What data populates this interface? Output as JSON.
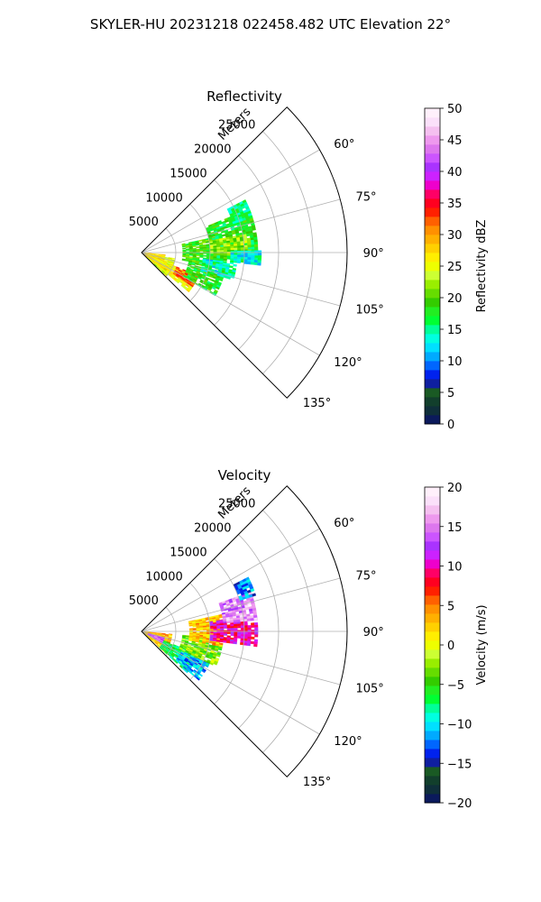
{
  "figure": {
    "suptitle": "SKYLER-HU  20231218  022458.482 UTC Elevation 22°"
  },
  "chart_data": [
    {
      "type": "heatmap",
      "projection": "polar-sector",
      "title": "Reflectivity",
      "radial_label": "Meters",
      "radial_ticks": [
        5000,
        10000,
        15000,
        20000,
        25000
      ],
      "radial_tick_labels": [
        "5000",
        "10000",
        "15000",
        "20000",
        "25000"
      ],
      "angle_range_deg": [
        45,
        135
      ],
      "angle_ticks": [
        60,
        75,
        90,
        105,
        120,
        135
      ],
      "angle_tick_labels": [
        "60°",
        "75°",
        "90°",
        "105°",
        "120°",
        "135°"
      ],
      "rlim": [
        0,
        30000
      ],
      "grid": true,
      "colorbar": {
        "label": "Reflectivity dBZ",
        "range": [
          0,
          50
        ],
        "ticks": [
          0,
          5,
          10,
          15,
          20,
          25,
          30,
          35,
          40,
          45,
          50
        ],
        "tick_labels": [
          "0",
          "5",
          "10",
          "15",
          "20",
          "25",
          "30",
          "35",
          "40",
          "45",
          "50"
        ],
        "colors": [
          "#0b1a5c",
          "#0f2f3a",
          "#123f2c",
          "#1a5a24",
          "#0f1fa0",
          "#0022ee",
          "#0066ff",
          "#00aaff",
          "#00e0ff",
          "#00ffe0",
          "#00ff99",
          "#00ff33",
          "#22ee22",
          "#33cc00",
          "#66dd00",
          "#99ee00",
          "#ccff33",
          "#eeff00",
          "#ffee00",
          "#ffd000",
          "#ffb000",
          "#ff9000",
          "#ff6000",
          "#ff2000",
          "#ff0020",
          "#ff0066",
          "#ee00cc",
          "#cc22ff",
          "#aa33ff",
          "#cc55ff",
          "#dd77ee",
          "#ee99ee",
          "#f5c0f0",
          "#fbe0fa",
          "#fff0fb"
        ]
      },
      "regions": [
        {
          "r": [
            0,
            5000
          ],
          "theta": [
            100,
            133
          ],
          "value": 24
        },
        {
          "r": [
            0,
            3500
          ],
          "theta": [
            95,
            128
          ],
          "value": 27
        },
        {
          "r": [
            2500,
            9000
          ],
          "theta": [
            112,
            130
          ],
          "value": 26
        },
        {
          "r": [
            5500,
            9000
          ],
          "theta": [
            112,
            123
          ],
          "value": 33
        },
        {
          "r": [
            7000,
            12500
          ],
          "theta": [
            100,
            120
          ],
          "value": 18
        },
        {
          "r": [
            6000,
            12000
          ],
          "theta": [
            78,
            100
          ],
          "value": 19
        },
        {
          "r": [
            10000,
            17000
          ],
          "theta": [
            68,
            95
          ],
          "value": 18
        },
        {
          "r": [
            14000,
            17000
          ],
          "theta": [
            63,
            72
          ],
          "value": 16
        },
        {
          "r": [
            9000,
            14000
          ],
          "theta": [
            96,
            106
          ],
          "value": 14
        },
        {
          "r": [
            10000,
            16000
          ],
          "theta": [
            80,
            92
          ],
          "value": 22
        },
        {
          "r": [
            13000,
            17500
          ],
          "theta": [
            89,
            96
          ],
          "value": 13
        }
      ]
    },
    {
      "type": "heatmap",
      "projection": "polar-sector",
      "title": "Velocity",
      "radial_label": "Meters",
      "radial_ticks": [
        5000,
        10000,
        15000,
        20000,
        25000
      ],
      "radial_tick_labels": [
        "5000",
        "10000",
        "15000",
        "20000",
        "25000"
      ],
      "angle_range_deg": [
        45,
        135
      ],
      "angle_ticks": [
        60,
        75,
        90,
        105,
        120,
        135
      ],
      "angle_tick_labels": [
        "60°",
        "75°",
        "90°",
        "105°",
        "120°",
        "135°"
      ],
      "rlim": [
        0,
        30000
      ],
      "grid": true,
      "colorbar": {
        "label": "Velocity (m/s)",
        "range": [
          -20,
          20
        ],
        "ticks": [
          -20,
          -15,
          -10,
          -5,
          0,
          5,
          10,
          15,
          20
        ],
        "tick_labels": [
          "−20",
          "−15",
          "−10",
          "−5",
          "0",
          "5",
          "10",
          "15",
          "20"
        ],
        "colors": [
          "#0b1a5c",
          "#0f2f3a",
          "#123f2c",
          "#1a5a24",
          "#0f1fa0",
          "#0022ee",
          "#0066ff",
          "#00aaff",
          "#00e0ff",
          "#00ffe0",
          "#00ff99",
          "#00ff33",
          "#22ee22",
          "#33cc00",
          "#66dd00",
          "#99ee00",
          "#ccff33",
          "#eeff00",
          "#ffee00",
          "#ffd000",
          "#ffb000",
          "#ff9000",
          "#ff6000",
          "#ff2000",
          "#ff0020",
          "#ff0066",
          "#ee00cc",
          "#cc22ff",
          "#aa33ff",
          "#cc55ff",
          "#dd77ee",
          "#ee99ee",
          "#f5c0f0",
          "#fbe0fa",
          "#fff0fb"
        ]
      },
      "regions": [
        {
          "r": [
            0,
            4500
          ],
          "theta": [
            95,
            132
          ],
          "value": 3
        },
        {
          "r": [
            1000,
            3500
          ],
          "theta": [
            105,
            120
          ],
          "value": 14
        },
        {
          "r": [
            3500,
            9000
          ],
          "theta": [
            112,
            132
          ],
          "value": -7
        },
        {
          "r": [
            6500,
            11000
          ],
          "theta": [
            115,
            130
          ],
          "value": -11
        },
        {
          "r": [
            6000,
            12000
          ],
          "theta": [
            95,
            115
          ],
          "value": -3
        },
        {
          "r": [
            7000,
            12000
          ],
          "theta": [
            78,
            100
          ],
          "value": 3
        },
        {
          "r": [
            10000,
            17000
          ],
          "theta": [
            82,
            97
          ],
          "value": 10
        },
        {
          "r": [
            12000,
            17000
          ],
          "theta": [
            70,
            84
          ],
          "value": 15
        },
        {
          "r": [
            15000,
            17500
          ],
          "theta": [
            63,
            72
          ],
          "value": -12
        }
      ]
    }
  ]
}
